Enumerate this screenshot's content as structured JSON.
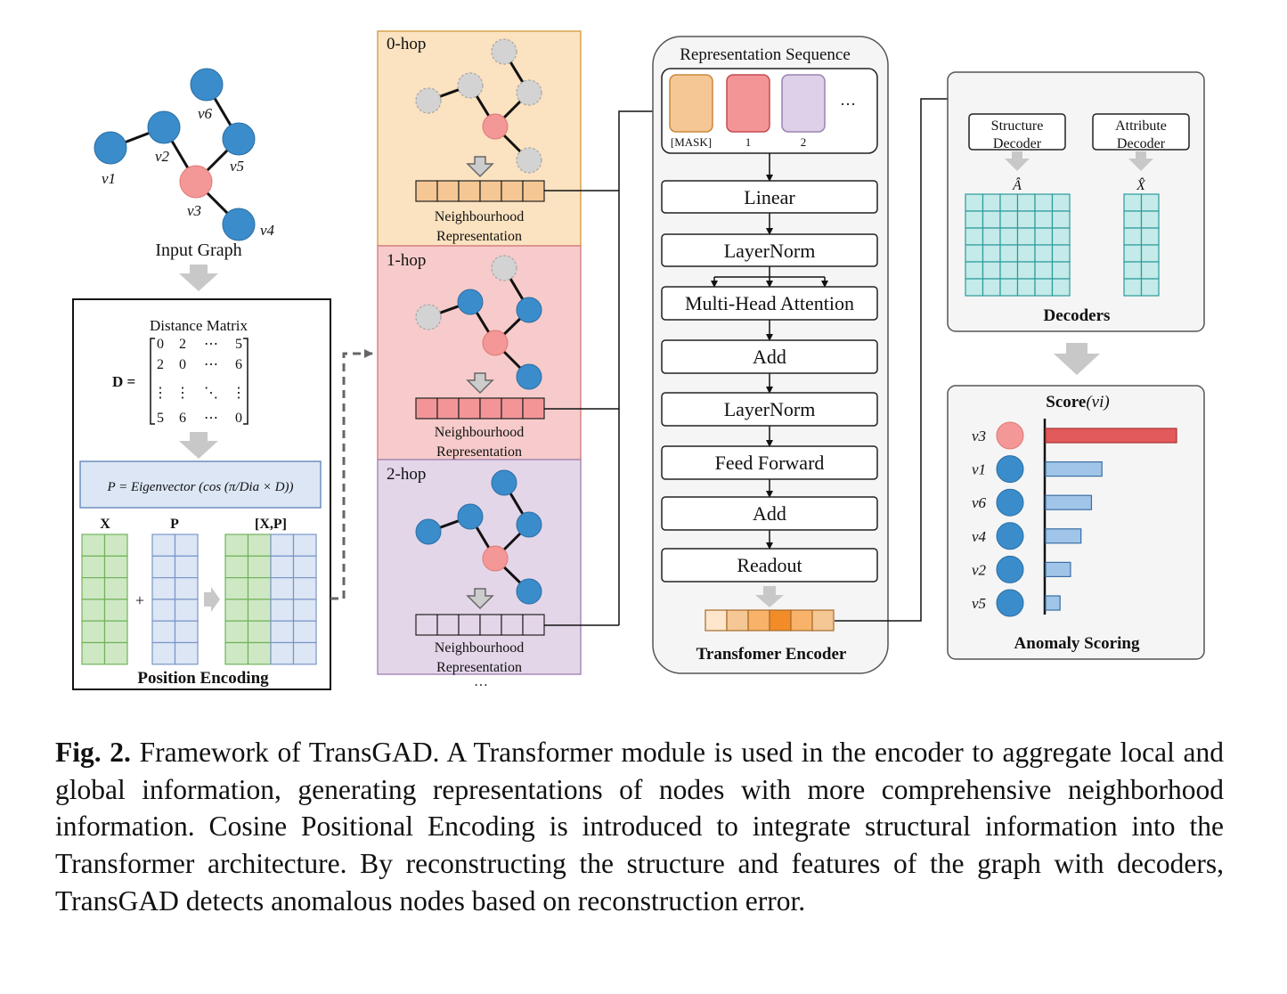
{
  "input_graph": {
    "label": "Input Graph",
    "node_labels": [
      "v1",
      "v2",
      "v3",
      "v4",
      "v5",
      "v6"
    ]
  },
  "position_encoding": {
    "title": "Position Encoding",
    "distance_matrix_label": "Distance Matrix",
    "d_symbol": "D =",
    "matrix_rows": [
      [
        "0",
        "2",
        "⋯",
        "5"
      ],
      [
        "2",
        "0",
        "⋯",
        "6"
      ],
      [
        "⋮",
        "⋮",
        "⋱",
        "⋮"
      ],
      [
        "5",
        "6",
        "⋯",
        "0"
      ]
    ],
    "equation": "P = Eigenvector (cos (π/Dia × D))",
    "x_label": "X",
    "p_label": "P",
    "xp_label": "[X,P]",
    "plus": "+"
  },
  "hops": [
    {
      "label": "0-hop",
      "caption_1": "Neighbourhood",
      "caption_2": "Representation"
    },
    {
      "label": "1-hop",
      "caption_1": "Neighbourhood",
      "caption_2": "Representation"
    },
    {
      "label": "2-hop",
      "caption_1": "Neighbourhood",
      "caption_2": "Representation"
    }
  ],
  "hops_more": "…",
  "encoder": {
    "title": "Transfomer Encoder",
    "sequence_title": "Representation Sequence",
    "tokens": [
      "[MASK]",
      "1",
      "2"
    ],
    "tokens_more": "…",
    "layers": [
      "Linear",
      "LayerNorm",
      "Multi-Head Attention",
      "Add",
      "LayerNorm",
      "Feed Forward",
      "Add",
      "Readout"
    ]
  },
  "decoders": {
    "title": "Decoders",
    "structure_1": "Structure",
    "structure_2": "Decoder",
    "attribute_1": "Attribute",
    "attribute_2": "Decoder",
    "a_hat": "Â",
    "x_hat": "X̂"
  },
  "scoring": {
    "title": "Anomaly Scoring",
    "score_label": "Score",
    "score_arg": "(vi)",
    "nodes": [
      {
        "name": "v3",
        "score": 1.0,
        "anomalous": true
      },
      {
        "name": "v1",
        "score": 0.43,
        "anomalous": false
      },
      {
        "name": "v6",
        "score": 0.35,
        "anomalous": false
      },
      {
        "name": "v4",
        "score": 0.27,
        "anomalous": false
      },
      {
        "name": "v2",
        "score": 0.19,
        "anomalous": false
      },
      {
        "name": "v5",
        "score": 0.11,
        "anomalous": false
      }
    ]
  },
  "colors": {
    "node_blue": "#3b8ccb",
    "node_red": "#f39897",
    "node_ghost": "#d3d3d3",
    "hop0_bg": "#fbe2c0",
    "hop1_bg": "#f7cbcb",
    "hop2_bg": "#e4d6e9",
    "bar_anomaly": "#e35a5a",
    "bar_normal": "#a0c5e8",
    "grid_teal": "#2c9a9a",
    "grid_teal_fill": "#c5eaea"
  },
  "caption": {
    "label": "Fig. 2.",
    "text": "Framework of TransGAD. A Transformer module is used in the encoder to aggregate local and global information, generating representations of nodes with more comprehensive neighborhood information. Cosine Positional Encoding is introduced to integrate structural information into the Transformer architecture. By reconstructing the structure and features of the graph with decoders, TransGAD detects anomalous nodes based on reconstruction error."
  }
}
